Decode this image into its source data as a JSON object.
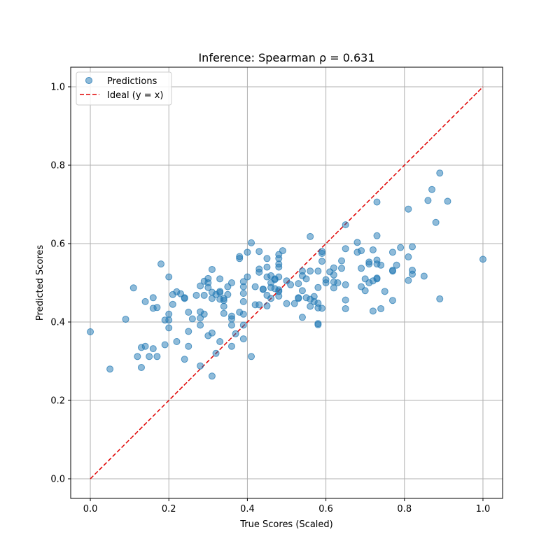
{
  "chart_data": {
    "type": "scatter",
    "title": "Inference: Spearman ρ = 0.631",
    "xlabel": "True Scores (Scaled)",
    "ylabel": "Predicted Scores",
    "xlim": [
      -0.05,
      1.05
    ],
    "ylim": [
      -0.05,
      1.05
    ],
    "xticks": [
      "0.0",
      "0.2",
      "0.4",
      "0.6",
      "0.8",
      "1.0"
    ],
    "yticks": [
      "0.0",
      "0.2",
      "0.4",
      "0.6",
      "0.8",
      "1.0"
    ],
    "grid": true,
    "legend_position": "top-left",
    "legend": [
      "Predictions",
      "Ideal (y = x)"
    ],
    "colors": {
      "points": "#1f77b4",
      "ideal_line": "#e00000"
    },
    "ideal_line": {
      "x": [
        0,
        1
      ],
      "y": [
        0,
        1
      ]
    },
    "points": [
      [
        0.0,
        0.375
      ],
      [
        0.05,
        0.28
      ],
      [
        0.09,
        0.407
      ],
      [
        0.11,
        0.487
      ],
      [
        0.12,
        0.312
      ],
      [
        0.13,
        0.335
      ],
      [
        0.13,
        0.284
      ],
      [
        0.14,
        0.452
      ],
      [
        0.14,
        0.338
      ],
      [
        0.15,
        0.312
      ],
      [
        0.16,
        0.462
      ],
      [
        0.16,
        0.435
      ],
      [
        0.16,
        0.332
      ],
      [
        0.17,
        0.437
      ],
      [
        0.17,
        0.312
      ],
      [
        0.18,
        0.548
      ],
      [
        0.19,
        0.405
      ],
      [
        0.19,
        0.342
      ],
      [
        0.2,
        0.515
      ],
      [
        0.2,
        0.42
      ],
      [
        0.2,
        0.405
      ],
      [
        0.2,
        0.385
      ],
      [
        0.21,
        0.47
      ],
      [
        0.21,
        0.445
      ],
      [
        0.22,
        0.477
      ],
      [
        0.22,
        0.35
      ],
      [
        0.23,
        0.472
      ],
      [
        0.24,
        0.462
      ],
      [
        0.24,
        0.46
      ],
      [
        0.24,
        0.305
      ],
      [
        0.25,
        0.425
      ],
      [
        0.25,
        0.376
      ],
      [
        0.25,
        0.338
      ],
      [
        0.26,
        0.408
      ],
      [
        0.27,
        0.468
      ],
      [
        0.28,
        0.492
      ],
      [
        0.28,
        0.426
      ],
      [
        0.28,
        0.41
      ],
      [
        0.28,
        0.392
      ],
      [
        0.28,
        0.288
      ],
      [
        0.29,
        0.504
      ],
      [
        0.29,
        0.468
      ],
      [
        0.29,
        0.42
      ],
      [
        0.3,
        0.511
      ],
      [
        0.3,
        0.5
      ],
      [
        0.3,
        0.488
      ],
      [
        0.3,
        0.365
      ],
      [
        0.31,
        0.534
      ],
      [
        0.31,
        0.476
      ],
      [
        0.31,
        0.46
      ],
      [
        0.31,
        0.372
      ],
      [
        0.31,
        0.262
      ],
      [
        0.32,
        0.47
      ],
      [
        0.32,
        0.32
      ],
      [
        0.33,
        0.51
      ],
      [
        0.33,
        0.478
      ],
      [
        0.33,
        0.475
      ],
      [
        0.33,
        0.458
      ],
      [
        0.33,
        0.35
      ],
      [
        0.34,
        0.46
      ],
      [
        0.34,
        0.455
      ],
      [
        0.34,
        0.44
      ],
      [
        0.34,
        0.422
      ],
      [
        0.35,
        0.49
      ],
      [
        0.35,
        0.47
      ],
      [
        0.36,
        0.5
      ],
      [
        0.36,
        0.415
      ],
      [
        0.36,
        0.408
      ],
      [
        0.36,
        0.392
      ],
      [
        0.36,
        0.338
      ],
      [
        0.37,
        0.37
      ],
      [
        0.38,
        0.567
      ],
      [
        0.38,
        0.562
      ],
      [
        0.38,
        0.425
      ],
      [
        0.39,
        0.503
      ],
      [
        0.39,
        0.49
      ],
      [
        0.39,
        0.473
      ],
      [
        0.39,
        0.452
      ],
      [
        0.39,
        0.42
      ],
      [
        0.39,
        0.392
      ],
      [
        0.39,
        0.357
      ],
      [
        0.4,
        0.578
      ],
      [
        0.4,
        0.515
      ],
      [
        0.41,
        0.602
      ],
      [
        0.41,
        0.312
      ],
      [
        0.42,
        0.49
      ],
      [
        0.42,
        0.444
      ],
      [
        0.43,
        0.58
      ],
      [
        0.43,
        0.535
      ],
      [
        0.43,
        0.527
      ],
      [
        0.43,
        0.444
      ],
      [
        0.44,
        0.484
      ],
      [
        0.44,
        0.483
      ],
      [
        0.45,
        0.562
      ],
      [
        0.45,
        0.54
      ],
      [
        0.45,
        0.515
      ],
      [
        0.45,
        0.468
      ],
      [
        0.45,
        0.441
      ],
      [
        0.46,
        0.518
      ],
      [
        0.46,
        0.5
      ],
      [
        0.46,
        0.488
      ],
      [
        0.46,
        0.46
      ],
      [
        0.47,
        0.51
      ],
      [
        0.47,
        0.508
      ],
      [
        0.47,
        0.485
      ],
      [
        0.48,
        0.572
      ],
      [
        0.48,
        0.562
      ],
      [
        0.48,
        0.548
      ],
      [
        0.48,
        0.54
      ],
      [
        0.48,
        0.515
      ],
      [
        0.48,
        0.482
      ],
      [
        0.48,
        0.478
      ],
      [
        0.48,
        0.466
      ],
      [
        0.49,
        0.582
      ],
      [
        0.5,
        0.505
      ],
      [
        0.5,
        0.447
      ],
      [
        0.51,
        0.495
      ],
      [
        0.52,
        0.447
      ],
      [
        0.53,
        0.498
      ],
      [
        0.53,
        0.462
      ],
      [
        0.53,
        0.46
      ],
      [
        0.54,
        0.53
      ],
      [
        0.54,
        0.518
      ],
      [
        0.54,
        0.48
      ],
      [
        0.54,
        0.412
      ],
      [
        0.55,
        0.51
      ],
      [
        0.55,
        0.462
      ],
      [
        0.56,
        0.618
      ],
      [
        0.56,
        0.53
      ],
      [
        0.56,
        0.458
      ],
      [
        0.56,
        0.44
      ],
      [
        0.57,
        0.465
      ],
      [
        0.57,
        0.452
      ],
      [
        0.58,
        0.53
      ],
      [
        0.58,
        0.488
      ],
      [
        0.58,
        0.448
      ],
      [
        0.58,
        0.436
      ],
      [
        0.58,
        0.396
      ],
      [
        0.58,
        0.393
      ],
      [
        0.59,
        0.58
      ],
      [
        0.59,
        0.575
      ],
      [
        0.59,
        0.555
      ],
      [
        0.59,
        0.435
      ],
      [
        0.6,
        0.508
      ],
      [
        0.6,
        0.5
      ],
      [
        0.61,
        0.528
      ],
      [
        0.62,
        0.538
      ],
      [
        0.62,
        0.52
      ],
      [
        0.62,
        0.502
      ],
      [
        0.62,
        0.487
      ],
      [
        0.63,
        0.5
      ],
      [
        0.64,
        0.556
      ],
      [
        0.64,
        0.537
      ],
      [
        0.65,
        0.648
      ],
      [
        0.65,
        0.587
      ],
      [
        0.65,
        0.495
      ],
      [
        0.65,
        0.456
      ],
      [
        0.65,
        0.434
      ],
      [
        0.68,
        0.603
      ],
      [
        0.68,
        0.578
      ],
      [
        0.69,
        0.582
      ],
      [
        0.69,
        0.537
      ],
      [
        0.69,
        0.49
      ],
      [
        0.7,
        0.51
      ],
      [
        0.7,
        0.48
      ],
      [
        0.71,
        0.553
      ],
      [
        0.71,
        0.548
      ],
      [
        0.71,
        0.5
      ],
      [
        0.72,
        0.584
      ],
      [
        0.72,
        0.505
      ],
      [
        0.72,
        0.428
      ],
      [
        0.73,
        0.706
      ],
      [
        0.73,
        0.62
      ],
      [
        0.73,
        0.558
      ],
      [
        0.73,
        0.548
      ],
      [
        0.73,
        0.512
      ],
      [
        0.73,
        0.51
      ],
      [
        0.74,
        0.545
      ],
      [
        0.74,
        0.434
      ],
      [
        0.75,
        0.478
      ],
      [
        0.77,
        0.578
      ],
      [
        0.77,
        0.532
      ],
      [
        0.77,
        0.53
      ],
      [
        0.77,
        0.455
      ],
      [
        0.78,
        0.545
      ],
      [
        0.79,
        0.59
      ],
      [
        0.81,
        0.688
      ],
      [
        0.81,
        0.566
      ],
      [
        0.81,
        0.506
      ],
      [
        0.82,
        0.592
      ],
      [
        0.82,
        0.532
      ],
      [
        0.82,
        0.522
      ],
      [
        0.85,
        0.517
      ],
      [
        0.86,
        0.71
      ],
      [
        0.87,
        0.738
      ],
      [
        0.88,
        0.654
      ],
      [
        0.89,
        0.78
      ],
      [
        0.89,
        0.459
      ],
      [
        0.91,
        0.708
      ],
      [
        1.0,
        0.56
      ]
    ]
  }
}
